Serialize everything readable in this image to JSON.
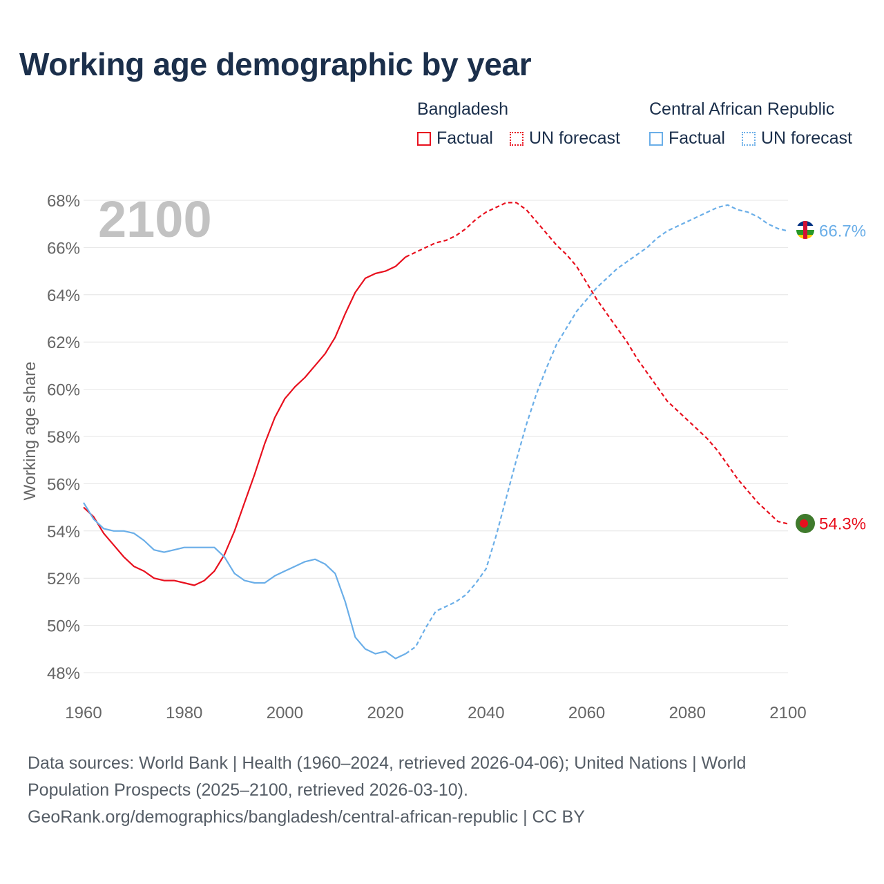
{
  "title": "Working age demographic by year",
  "legend": {
    "groups": [
      {
        "name": "Bangladesh",
        "factual_label": "Factual",
        "forecast_label": "UN forecast",
        "color": "#e8101e"
      },
      {
        "name": "Central African Republic",
        "factual_label": "Factual",
        "forecast_label": "UN forecast",
        "color": "#6aaee8"
      }
    ]
  },
  "year_watermark": "2100",
  "chart_data": {
    "type": "line",
    "title": "Working age demographic by year",
    "xlabel": "",
    "ylabel": "Working age share",
    "xlim": [
      1960,
      2100
    ],
    "ylim": [
      47.5,
      68.5
    ],
    "x_ticks": [
      1960,
      1980,
      2000,
      2020,
      2040,
      2060,
      2080,
      2100
    ],
    "x_tick_labels": [
      "1960",
      "1980",
      "2000",
      "2020",
      "2040",
      "2060",
      "2080",
      "2100"
    ],
    "y_ticks": [
      48,
      50,
      52,
      54,
      56,
      58,
      60,
      62,
      64,
      66,
      68
    ],
    "y_tick_labels": [
      "48%",
      "50%",
      "52%",
      "54%",
      "56%",
      "58%",
      "60%",
      "62%",
      "64%",
      "66%",
      "68%"
    ],
    "factual_end_year": 2024,
    "series": [
      {
        "name": "Bangladesh",
        "color": "#e8101e",
        "end_label": "54.3%",
        "points": [
          [
            1960,
            55.0
          ],
          [
            1962,
            54.6
          ],
          [
            1964,
            53.9
          ],
          [
            1966,
            53.4
          ],
          [
            1968,
            52.9
          ],
          [
            1970,
            52.5
          ],
          [
            1972,
            52.3
          ],
          [
            1974,
            52.0
          ],
          [
            1976,
            51.9
          ],
          [
            1978,
            51.9
          ],
          [
            1980,
            51.8
          ],
          [
            1982,
            51.7
          ],
          [
            1984,
            51.9
          ],
          [
            1986,
            52.3
          ],
          [
            1988,
            53.0
          ],
          [
            1990,
            54.0
          ],
          [
            1992,
            55.2
          ],
          [
            1994,
            56.4
          ],
          [
            1996,
            57.7
          ],
          [
            1998,
            58.8
          ],
          [
            2000,
            59.6
          ],
          [
            2002,
            60.1
          ],
          [
            2004,
            60.5
          ],
          [
            2006,
            61.0
          ],
          [
            2008,
            61.5
          ],
          [
            2010,
            62.2
          ],
          [
            2012,
            63.2
          ],
          [
            2014,
            64.1
          ],
          [
            2016,
            64.7
          ],
          [
            2018,
            64.9
          ],
          [
            2020,
            65.0
          ],
          [
            2022,
            65.2
          ],
          [
            2024,
            65.6
          ],
          [
            2026,
            65.8
          ],
          [
            2028,
            66.0
          ],
          [
            2030,
            66.2
          ],
          [
            2032,
            66.3
          ],
          [
            2034,
            66.5
          ],
          [
            2036,
            66.8
          ],
          [
            2038,
            67.2
          ],
          [
            2040,
            67.5
          ],
          [
            2042,
            67.7
          ],
          [
            2044,
            67.9
          ],
          [
            2046,
            67.9
          ],
          [
            2048,
            67.6
          ],
          [
            2050,
            67.1
          ],
          [
            2052,
            66.6
          ],
          [
            2054,
            66.1
          ],
          [
            2056,
            65.7
          ],
          [
            2058,
            65.2
          ],
          [
            2060,
            64.5
          ],
          [
            2062,
            63.8
          ],
          [
            2064,
            63.2
          ],
          [
            2066,
            62.6
          ],
          [
            2068,
            62.0
          ],
          [
            2070,
            61.3
          ],
          [
            2072,
            60.7
          ],
          [
            2074,
            60.1
          ],
          [
            2076,
            59.5
          ],
          [
            2078,
            59.1
          ],
          [
            2080,
            58.7
          ],
          [
            2082,
            58.3
          ],
          [
            2084,
            57.9
          ],
          [
            2086,
            57.4
          ],
          [
            2088,
            56.8
          ],
          [
            2090,
            56.2
          ],
          [
            2092,
            55.7
          ],
          [
            2094,
            55.2
          ],
          [
            2096,
            54.8
          ],
          [
            2098,
            54.4
          ],
          [
            2100,
            54.3
          ]
        ]
      },
      {
        "name": "Central African Republic",
        "color": "#6aaee8",
        "end_label": "66.7%",
        "points": [
          [
            1960,
            55.2
          ],
          [
            1962,
            54.5
          ],
          [
            1964,
            54.1
          ],
          [
            1966,
            54.0
          ],
          [
            1968,
            54.0
          ],
          [
            1970,
            53.9
          ],
          [
            1972,
            53.6
          ],
          [
            1974,
            53.2
          ],
          [
            1976,
            53.1
          ],
          [
            1978,
            53.2
          ],
          [
            1980,
            53.3
          ],
          [
            1982,
            53.3
          ],
          [
            1984,
            53.3
          ],
          [
            1986,
            53.3
          ],
          [
            1988,
            52.9
          ],
          [
            1990,
            52.2
          ],
          [
            1992,
            51.9
          ],
          [
            1994,
            51.8
          ],
          [
            1996,
            51.8
          ],
          [
            1998,
            52.1
          ],
          [
            2000,
            52.3
          ],
          [
            2002,
            52.5
          ],
          [
            2004,
            52.7
          ],
          [
            2006,
            52.8
          ],
          [
            2008,
            52.6
          ],
          [
            2010,
            52.2
          ],
          [
            2012,
            51.0
          ],
          [
            2014,
            49.5
          ],
          [
            2016,
            49.0
          ],
          [
            2018,
            48.8
          ],
          [
            2020,
            48.9
          ],
          [
            2022,
            48.6
          ],
          [
            2024,
            48.8
          ],
          [
            2026,
            49.1
          ],
          [
            2028,
            49.9
          ],
          [
            2030,
            50.6
          ],
          [
            2032,
            50.8
          ],
          [
            2034,
            51.0
          ],
          [
            2036,
            51.3
          ],
          [
            2038,
            51.8
          ],
          [
            2040,
            52.4
          ],
          [
            2042,
            53.8
          ],
          [
            2044,
            55.4
          ],
          [
            2046,
            57.0
          ],
          [
            2048,
            58.5
          ],
          [
            2050,
            59.8
          ],
          [
            2052,
            60.9
          ],
          [
            2054,
            61.9
          ],
          [
            2056,
            62.6
          ],
          [
            2058,
            63.3
          ],
          [
            2060,
            63.8
          ],
          [
            2062,
            64.3
          ],
          [
            2064,
            64.7
          ],
          [
            2066,
            65.1
          ],
          [
            2068,
            65.4
          ],
          [
            2070,
            65.7
          ],
          [
            2072,
            66.0
          ],
          [
            2074,
            66.4
          ],
          [
            2076,
            66.7
          ],
          [
            2078,
            66.9
          ],
          [
            2080,
            67.1
          ],
          [
            2082,
            67.3
          ],
          [
            2084,
            67.5
          ],
          [
            2086,
            67.7
          ],
          [
            2088,
            67.8
          ],
          [
            2090,
            67.6
          ],
          [
            2092,
            67.5
          ],
          [
            2094,
            67.3
          ],
          [
            2096,
            67.0
          ],
          [
            2098,
            66.8
          ],
          [
            2100,
            66.7
          ]
        ]
      }
    ]
  },
  "source_lines": [
    "Data sources: World Bank | Health (1960–2024, retrieved 2026-04-06); United Nations | World",
    "Population Prospects (2025–2100, retrieved 2026-03-10).",
    "GeoRank.org/demographics/bangladesh/central-african-republic | CC BY"
  ]
}
